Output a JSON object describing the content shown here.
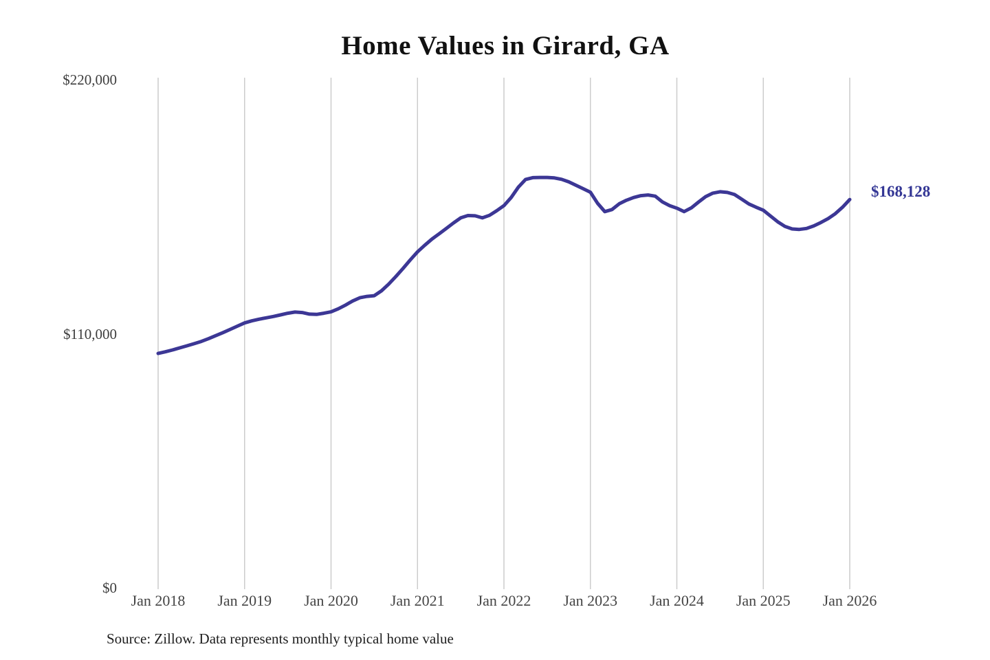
{
  "page": {
    "background_color": "#ffffff"
  },
  "chart_data": {
    "type": "line",
    "title": "Home Values in Girard, GA",
    "series_name": "Monthly typical home value",
    "frequency": "monthly",
    "start_month": "Jan 2018",
    "end_month": "Jan 2026",
    "values": [
      101500,
      102200,
      103000,
      103900,
      104800,
      105700,
      106700,
      107900,
      109200,
      110500,
      111900,
      113300,
      114700,
      115600,
      116300,
      116900,
      117500,
      118200,
      118900,
      119400,
      119200,
      118500,
      118400,
      118900,
      119500,
      120800,
      122400,
      124200,
      125600,
      126200,
      126500,
      128600,
      131500,
      134800,
      138300,
      142000,
      145500,
      148300,
      151000,
      153300,
      155600,
      158000,
      160200,
      161200,
      161100,
      160200,
      161300,
      163300,
      165500,
      169000,
      173500,
      176800,
      177600,
      177700,
      177700,
      177500,
      176900,
      175800,
      174300,
      172800,
      171300,
      166500,
      162900,
      163800,
      166300,
      167800,
      169000,
      169800,
      170100,
      169600,
      167100,
      165500,
      164400,
      162900,
      164500,
      167000,
      169400,
      170900,
      171500,
      171200,
      170300,
      168300,
      166200,
      164800,
      163500,
      161000,
      158500,
      156500,
      155400,
      155200,
      155600,
      156700,
      158200,
      159900,
      162000,
      164800,
      168128
    ],
    "x_tick_labels": [
      "Jan 2018",
      "Jan 2019",
      "Jan 2020",
      "Jan 2021",
      "Jan 2022",
      "Jan 2023",
      "Jan 2024",
      "Jan 2025",
      "Jan 2026"
    ],
    "y_ticks": [
      {
        "label": "$220,000",
        "value": 220000
      },
      {
        "label": "$110,000",
        "value": 110000
      },
      {
        "label": "$0",
        "value": 0
      }
    ],
    "ylim": [
      0,
      220000
    ],
    "grid": "vertical-only",
    "legend": "none",
    "end_label": "$168,128",
    "end_value": 168128,
    "colors": {
      "line": "#3c3795",
      "end_label": "#343795",
      "gridline": "#cccccc",
      "tick_text": "#444444",
      "title_text": "#111111"
    }
  },
  "footer": {
    "source_note": "Source: Zillow. Data represents monthly typical home value"
  }
}
